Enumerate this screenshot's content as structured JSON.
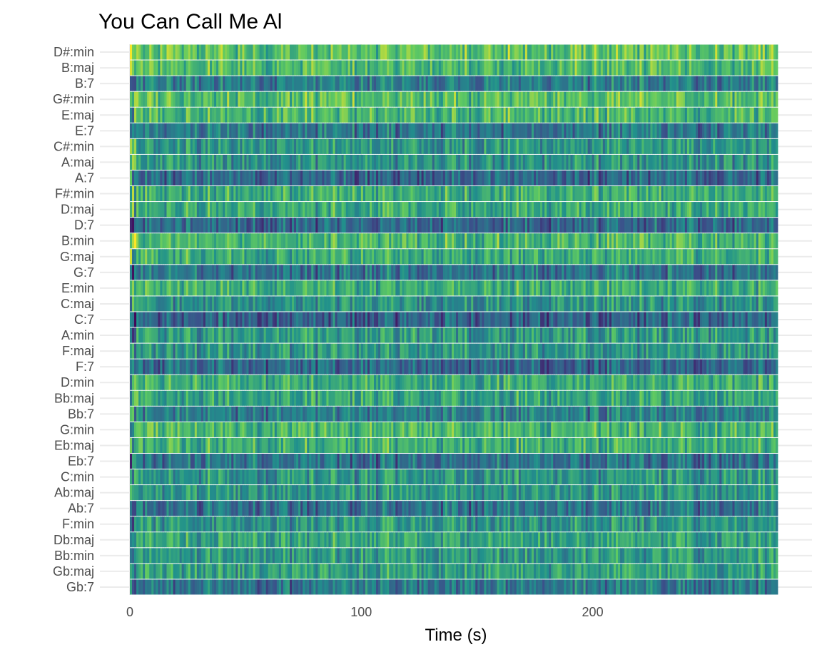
{
  "chart_data": {
    "type": "heatmap",
    "title": "You Can Call Me Al",
    "xlabel": "Time (s)",
    "ylabel": "",
    "xlim": [
      0,
      280
    ],
    "x_ticks": [
      0,
      100,
      200
    ],
    "grid": true,
    "legend": "none",
    "colormap": "viridis",
    "value_range": [
      0,
      1
    ],
    "categories": [
      "D#:min",
      "B:maj",
      "B:7",
      "G#:min",
      "E:maj",
      "E:7",
      "C#:min",
      "A:maj",
      "A:7",
      "F#:min",
      "D:maj",
      "D:7",
      "B:min",
      "G:maj",
      "G:7",
      "E:min",
      "C:maj",
      "C:7",
      "A:min",
      "F:maj",
      "F:7",
      "D:min",
      "Bb:maj",
      "Bb:7",
      "G:min",
      "Eb:maj",
      "Eb:7",
      "C:min",
      "Ab:maj",
      "Ab:7",
      "F:min",
      "Db:maj",
      "Bb:min",
      "Gb:maj",
      "Gb:7"
    ],
    "row_mean_values": [
      0.72,
      0.68,
      0.42,
      0.7,
      0.66,
      0.4,
      0.52,
      0.5,
      0.33,
      0.62,
      0.6,
      0.34,
      0.66,
      0.62,
      0.38,
      0.62,
      0.5,
      0.32,
      0.54,
      0.52,
      0.34,
      0.62,
      0.58,
      0.42,
      0.66,
      0.62,
      0.38,
      0.52,
      0.52,
      0.38,
      0.52,
      0.58,
      0.54,
      0.56,
      0.4
    ]
  },
  "colors": {
    "grid": "#ebebeb",
    "viridis": [
      "#440154",
      "#3b528b",
      "#21918c",
      "#5ec962",
      "#fde725"
    ]
  }
}
